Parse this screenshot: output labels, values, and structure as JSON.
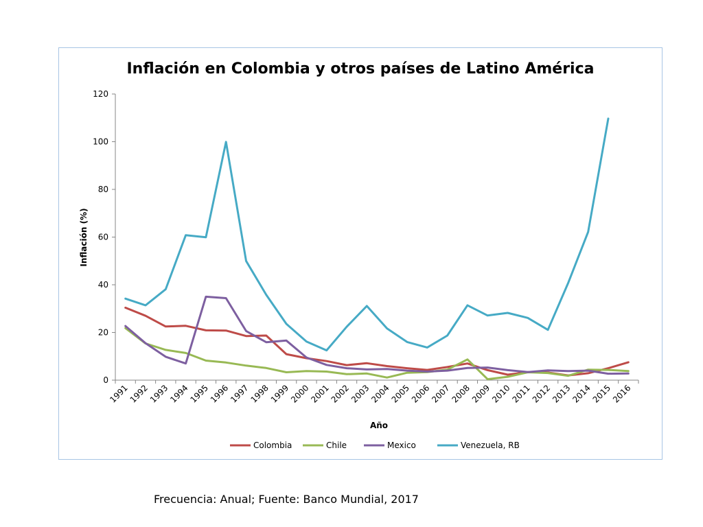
{
  "chart_data": {
    "type": "line",
    "title": "Inflación en Colombia y otros países de Latino América",
    "xlabel": "Año",
    "ylabel": "Inflación (%)",
    "ylim": [
      0,
      120
    ],
    "yticks": [
      0,
      20,
      40,
      60,
      80,
      100,
      120
    ],
    "grid": false,
    "legend": "bottom",
    "x": [
      "1991",
      "1992",
      "1993",
      "1994",
      "1995",
      "1996",
      "1997",
      "1998",
      "1999",
      "2000",
      "2001",
      "2002",
      "2003",
      "2004",
      "2005",
      "2006",
      "2007",
      "2008",
      "2009",
      "2010",
      "2011",
      "2012",
      "2013",
      "2014",
      "2015",
      "2016"
    ],
    "series": [
      {
        "name": "Colombia",
        "color": "#be4b48",
        "values": [
          30.4,
          27.0,
          22.5,
          22.8,
          20.9,
          20.8,
          18.5,
          18.7,
          10.9,
          9.2,
          8.0,
          6.3,
          7.1,
          5.9,
          5.0,
          4.3,
          5.5,
          7.0,
          4.2,
          2.3,
          3.4,
          3.2,
          2.0,
          2.9,
          5.0,
          7.5
        ]
      },
      {
        "name": "Chile",
        "color": "#98b954",
        "values": [
          21.8,
          15.4,
          12.7,
          11.4,
          8.2,
          7.4,
          6.1,
          5.1,
          3.3,
          3.8,
          3.6,
          2.5,
          2.8,
          1.1,
          3.1,
          3.4,
          4.4,
          8.7,
          0.4,
          1.4,
          3.3,
          3.0,
          1.8,
          4.4,
          4.3,
          3.8
        ]
      },
      {
        "name": "Mexico",
        "color": "#7d5fa0",
        "values": [
          22.7,
          15.5,
          9.8,
          7.0,
          35.0,
          34.4,
          20.6,
          15.9,
          16.6,
          9.5,
          6.4,
          5.0,
          4.5,
          4.7,
          4.0,
          3.6,
          4.0,
          5.1,
          5.3,
          4.2,
          3.4,
          4.1,
          3.8,
          4.0,
          2.7,
          2.8
        ]
      },
      {
        "name": "Venezuela, RB",
        "color": "#46aac5",
        "values": [
          34.2,
          31.4,
          38.1,
          60.8,
          59.9,
          99.9,
          50.0,
          35.8,
          23.6,
          16.2,
          12.5,
          22.4,
          31.1,
          21.7,
          16.0,
          13.7,
          18.7,
          31.4,
          27.1,
          28.2,
          26.1,
          21.1,
          40.6,
          62.2,
          109.7,
          null
        ]
      }
    ]
  },
  "caption": "Frecuencia: Anual; Fuente: Banco Mundial, 2017"
}
